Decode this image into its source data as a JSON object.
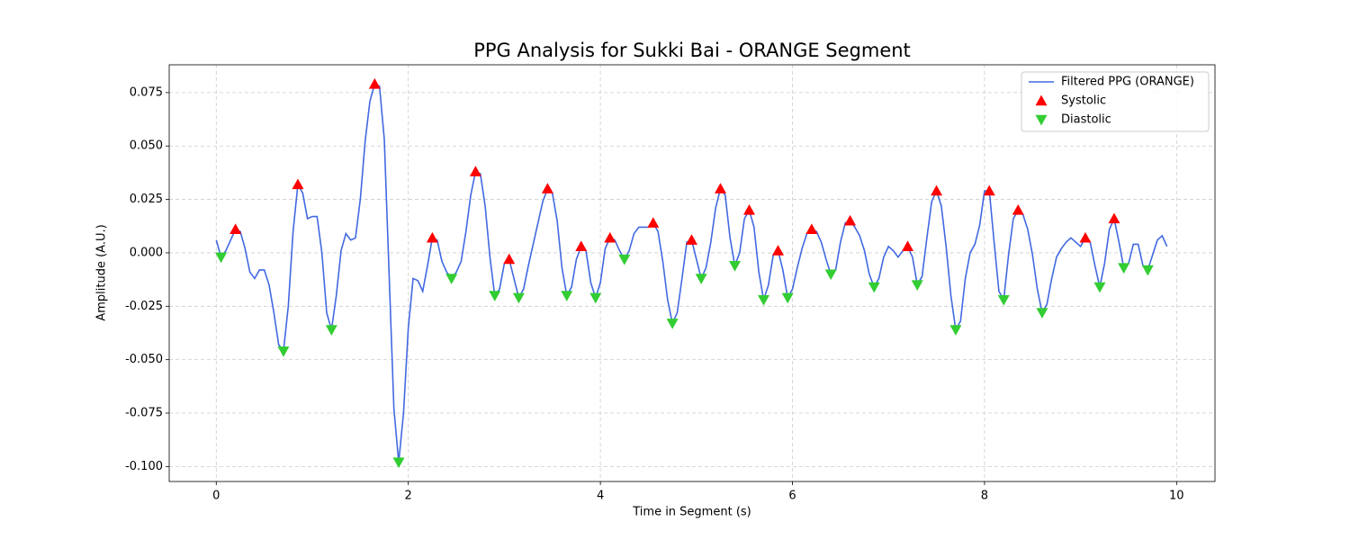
{
  "chart_data": {
    "type": "line",
    "title": "PPG Analysis for Sukki Bai - ORANGE Segment",
    "x_label": "Time in Segment (s)",
    "y_label": "Amplitude (A.U.)",
    "xlim": [
      -0.49,
      10.4
    ],
    "ylim": [
      -0.107,
      0.088
    ],
    "xticks": [
      0,
      2,
      4,
      6,
      8,
      10
    ],
    "yticks": [
      {
        "value": -0.1,
        "label": "-0.100"
      },
      {
        "value": -0.075,
        "label": "-0.075"
      },
      {
        "value": -0.05,
        "label": "-0.050"
      },
      {
        "value": -0.025,
        "label": "-0.025"
      },
      {
        "value": 0,
        "label": "0.000"
      },
      {
        "value": 0.025,
        "label": "0.025"
      },
      {
        "value": 0.05,
        "label": "0.050"
      },
      {
        "value": 0.075,
        "label": "0.075"
      }
    ],
    "grid": true,
    "legend": "upper right",
    "series": [
      {
        "name": "Filtered PPG (ORANGE)",
        "type": "line",
        "color": "#4169e1",
        "x": [
          0,
          0.05,
          0.1,
          0.15,
          0.2,
          0.25,
          0.3,
          0.35,
          0.4,
          0.45,
          0.5,
          0.55,
          0.6,
          0.65,
          0.7,
          0.75,
          0.8,
          0.85,
          0.9,
          0.95,
          1,
          1.05,
          1.1,
          1.15,
          1.2,
          1.25,
          1.3,
          1.35,
          1.4,
          1.45,
          1.5,
          1.55,
          1.6,
          1.65,
          1.7,
          1.75,
          1.8,
          1.85,
          1.9,
          1.95,
          2,
          2.05,
          2.1,
          2.15,
          2.2,
          2.25,
          2.3,
          2.35,
          2.4,
          2.45,
          2.5,
          2.55,
          2.6,
          2.65,
          2.7,
          2.75,
          2.8,
          2.85,
          2.9,
          2.95,
          3,
          3.05,
          3.1,
          3.15,
          3.2,
          3.25,
          3.3,
          3.35,
          3.4,
          3.45,
          3.5,
          3.55,
          3.6,
          3.65,
          3.7,
          3.75,
          3.8,
          3.85,
          3.9,
          3.95,
          4,
          4.05,
          4.1,
          4.15,
          4.2,
          4.25,
          4.3,
          4.35,
          4.4,
          4.45,
          4.5,
          4.55,
          4.6,
          4.65,
          4.7,
          4.75,
          4.8,
          4.85,
          4.9,
          4.95,
          5,
          5.05,
          5.1,
          5.15,
          5.2,
          5.25,
          5.3,
          5.35,
          5.4,
          5.45,
          5.5,
          5.55,
          5.6,
          5.65,
          5.7,
          5.75,
          5.8,
          5.85,
          5.9,
          5.95,
          6,
          6.05,
          6.1,
          6.15,
          6.2,
          6.25,
          6.3,
          6.35,
          6.4,
          6.45,
          6.5,
          6.55,
          6.6,
          6.65,
          6.7,
          6.75,
          6.8,
          6.85,
          6.9,
          6.95,
          7,
          7.05,
          7.1,
          7.15,
          7.2,
          7.25,
          7.3,
          7.35,
          7.4,
          7.45,
          7.5,
          7.55,
          7.6,
          7.65,
          7.7,
          7.75,
          7.8,
          7.85,
          7.9,
          7.95,
          8,
          8.05,
          8.1,
          8.15,
          8.2,
          8.25,
          8.3,
          8.35,
          8.4,
          8.45,
          8.5,
          8.55,
          8.6,
          8.65,
          8.7,
          8.75,
          8.8,
          8.85,
          8.9,
          8.95,
          9,
          9.05,
          9.1,
          9.15,
          9.2,
          9.25,
          9.3,
          9.35,
          9.4,
          9.45,
          9.5,
          9.55,
          9.6,
          9.65,
          9.7,
          9.75,
          9.8,
          9.85,
          9.9
        ],
        "values": [
          0.006,
          -0.002,
          0.001,
          0.006,
          0.011,
          0.01,
          0.002,
          -0.009,
          -0.012,
          -0.008,
          -0.008,
          -0.015,
          -0.028,
          -0.043,
          -0.046,
          -0.025,
          0.01,
          0.032,
          0.028,
          0.016,
          0.017,
          0.017,
          0,
          -0.028,
          -0.036,
          -0.02,
          0.001,
          0.009,
          0.006,
          0.007,
          0.025,
          0.052,
          0.071,
          0.079,
          0.078,
          0.053,
          -0.01,
          -0.073,
          -0.098,
          -0.075,
          -0.035,
          -0.012,
          -0.013,
          -0.018,
          -0.006,
          0.007,
          0.006,
          -0.004,
          -0.009,
          -0.012,
          -0.009,
          -0.004,
          0.01,
          0.027,
          0.038,
          0.037,
          0.022,
          -0.002,
          -0.02,
          -0.017,
          -0.005,
          -0.003,
          -0.012,
          -0.021,
          -0.017,
          -0.006,
          0.004,
          0.014,
          0.024,
          0.03,
          0.028,
          0.015,
          -0.007,
          -0.02,
          -0.016,
          -0.003,
          0.003,
          0.001,
          -0.014,
          -0.021,
          -0.014,
          0.002,
          0.007,
          0.006,
          0.001,
          -0.003,
          0.001,
          0.009,
          0.012,
          0.012,
          0.012,
          0.014,
          0.01,
          -0.004,
          -0.022,
          -0.033,
          -0.028,
          -0.012,
          0.005,
          0.006,
          -0.003,
          -0.012,
          -0.007,
          0.005,
          0.021,
          0.03,
          0.027,
          0.007,
          -0.006,
          0,
          0.016,
          0.02,
          0.012,
          -0.009,
          -0.022,
          -0.015,
          -0.001,
          0.001,
          -0.008,
          -0.021,
          -0.017,
          -0.007,
          0.002,
          0.009,
          0.011,
          0.01,
          0.005,
          -0.003,
          -0.01,
          -0.008,
          0.005,
          0.014,
          0.015,
          0.012,
          0.008,
          0.001,
          -0.01,
          -0.016,
          -0.012,
          -0.002,
          0.003,
          0.001,
          -0.002,
          0.001,
          0.003,
          -0.002,
          -0.015,
          -0.011,
          0.007,
          0.024,
          0.029,
          0.022,
          0.003,
          -0.02,
          -0.036,
          -0.032,
          -0.012,
          0,
          0.004,
          0.013,
          0.029,
          0.029,
          0.005,
          -0.018,
          -0.022,
          -0.001,
          0.016,
          0.02,
          0.018,
          0.011,
          -0.001,
          -0.017,
          -0.028,
          -0.024,
          -0.012,
          -0.002,
          0.002,
          0.005,
          0.007,
          0.005,
          0.003,
          0.007,
          0.005,
          -0.006,
          -0.016,
          -0.005,
          0.011,
          0.016,
          0.005,
          -0.007,
          -0.005,
          0.004,
          0.004,
          -0.006,
          -0.008,
          -0.001,
          0.006,
          0.008,
          0.003
        ]
      },
      {
        "name": "Systolic",
        "type": "scatter",
        "marker": "triangle-up",
        "color": "#ff0000",
        "x": [
          0.2,
          0.85,
          1.65,
          2.25,
          2.7,
          3.05,
          3.45,
          3.8,
          4.1,
          4.55,
          4.95,
          5.25,
          5.55,
          5.85,
          6.2,
          6.6,
          7.2,
          7.5,
          8.05,
          8.35,
          9.05,
          9.35
        ],
        "values": [
          0.011,
          0.032,
          0.079,
          0.007,
          0.038,
          -0.003,
          0.03,
          0.003,
          0.007,
          0.014,
          0.006,
          0.03,
          0.02,
          0.001,
          0.011,
          0.015,
          0.003,
          0.029,
          0.029,
          0.02,
          0.007,
          0.016
        ]
      },
      {
        "name": "Diastolic",
        "type": "scatter",
        "marker": "triangle-down",
        "color": "#32cd32",
        "x": [
          0.05,
          0.7,
          1.2,
          1.9,
          2.45,
          2.9,
          3.15,
          3.65,
          3.95,
          4.25,
          4.75,
          5.05,
          5.4,
          5.7,
          5.95,
          6.4,
          6.85,
          7.3,
          7.7,
          8.2,
          8.6,
          9.2,
          9.45,
          9.7
        ],
        "values": [
          -0.002,
          -0.046,
          -0.036,
          -0.098,
          -0.012,
          -0.02,
          -0.021,
          -0.02,
          -0.021,
          -0.003,
          -0.033,
          -0.012,
          -0.006,
          -0.022,
          -0.021,
          -0.01,
          -0.016,
          -0.015,
          -0.036,
          -0.022,
          -0.028,
          -0.016,
          -0.007,
          -0.008
        ]
      }
    ]
  }
}
